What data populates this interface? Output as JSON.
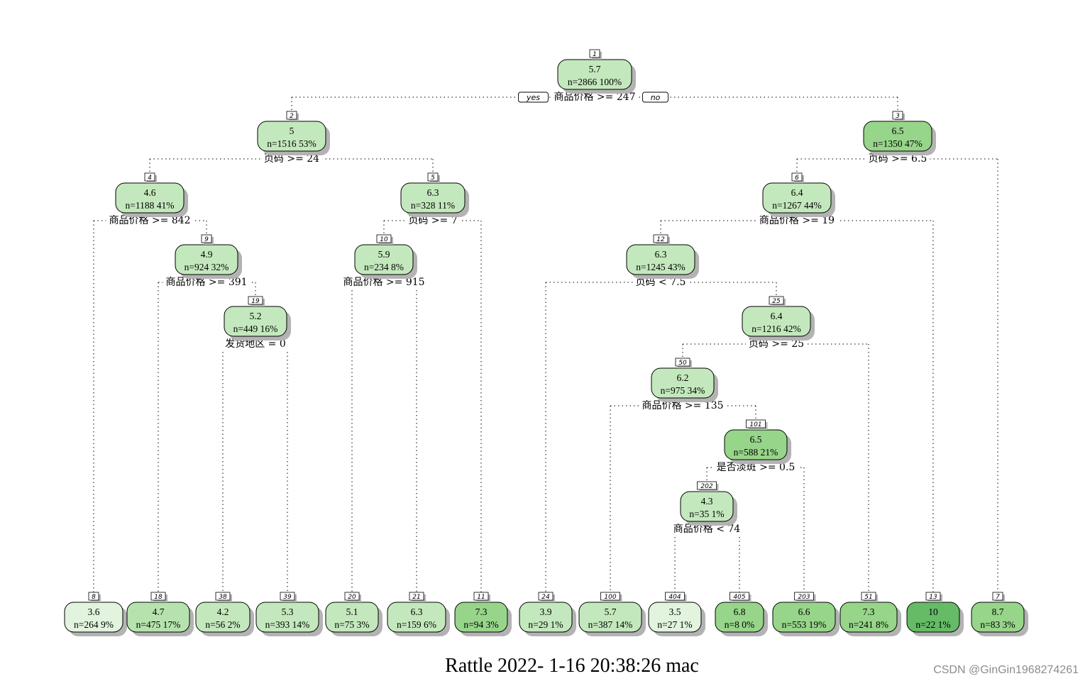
{
  "root_split": {
    "yes_label": "yes",
    "no_label": "no"
  },
  "colors": {
    "shade": [
      "#e2f3de",
      "#c4e8bd",
      "#b6e3ad",
      "#97d58a",
      "#66bb66"
    ]
  },
  "nodes": [
    {
      "id": "1",
      "value": "5.7",
      "stats": "n=2866  100%",
      "shade": 1,
      "split": "商品价格 >= 247"
    },
    {
      "id": "2",
      "value": "5",
      "stats": "n=1516  53%",
      "shade": 1,
      "split": "页码 >= 24"
    },
    {
      "id": "3",
      "value": "6.5",
      "stats": "n=1350  47%",
      "shade": 3,
      "split": "页码 >= 6.5"
    },
    {
      "id": "4",
      "value": "4.6",
      "stats": "n=1188  41%",
      "shade": 1,
      "split": "商品价格 >= 842"
    },
    {
      "id": "5",
      "value": "6.3",
      "stats": "n=328  11%",
      "shade": 1,
      "split": "页码 >= 7"
    },
    {
      "id": "6",
      "value": "6.4",
      "stats": "n=1267  44%",
      "shade": 1,
      "split": "商品价格 >= 19"
    },
    {
      "id": "9",
      "value": "4.9",
      "stats": "n=924  32%",
      "shade": 1,
      "split": "商品价格 >= 391"
    },
    {
      "id": "10",
      "value": "5.9",
      "stats": "n=234  8%",
      "shade": 1,
      "split": "商品价格 >= 915"
    },
    {
      "id": "12",
      "value": "6.3",
      "stats": "n=1245  43%",
      "shade": 1,
      "split": "页码 < 7.5"
    },
    {
      "id": "19",
      "value": "5.2",
      "stats": "n=449  16%",
      "shade": 1,
      "split": "发货地区 = 0"
    },
    {
      "id": "25",
      "value": "6.4",
      "stats": "n=1216  42%",
      "shade": 1,
      "split": "页码 >= 25"
    },
    {
      "id": "50",
      "value": "6.2",
      "stats": "n=975  34%",
      "shade": 1,
      "split": "商品价格 >= 135"
    },
    {
      "id": "101",
      "value": "6.5",
      "stats": "n=588  21%",
      "shade": 3,
      "split": "是否淡斑 >= 0.5"
    },
    {
      "id": "202",
      "value": "4.3",
      "stats": "n=35  1%",
      "shade": 1,
      "split": "商品价格 < 74"
    },
    {
      "id": "8",
      "value": "3.6",
      "stats": "n=264  9%",
      "shade": 0,
      "split": ""
    },
    {
      "id": "18",
      "value": "4.7",
      "stats": "n=475  17%",
      "shade": 2,
      "split": ""
    },
    {
      "id": "38",
      "value": "4.2",
      "stats": "n=56  2%",
      "shade": 1,
      "split": ""
    },
    {
      "id": "39",
      "value": "5.3",
      "stats": "n=393  14%",
      "shade": 1,
      "split": ""
    },
    {
      "id": "20",
      "value": "5.1",
      "stats": "n=75  3%",
      "shade": 1,
      "split": ""
    },
    {
      "id": "21",
      "value": "6.3",
      "stats": "n=159  6%",
      "shade": 1,
      "split": ""
    },
    {
      "id": "11",
      "value": "7.3",
      "stats": "n=94  3%",
      "shade": 3,
      "split": ""
    },
    {
      "id": "24",
      "value": "3.9",
      "stats": "n=29  1%",
      "shade": 1,
      "split": ""
    },
    {
      "id": "100",
      "value": "5.7",
      "stats": "n=387  14%",
      "shade": 1,
      "split": ""
    },
    {
      "id": "404",
      "value": "3.5",
      "stats": "n=27  1%",
      "shade": 0,
      "split": ""
    },
    {
      "id": "405",
      "value": "6.8",
      "stats": "n=8  0%",
      "shade": 3,
      "split": ""
    },
    {
      "id": "203",
      "value": "6.6",
      "stats": "n=553  19%",
      "shade": 3,
      "split": ""
    },
    {
      "id": "51",
      "value": "7.3",
      "stats": "n=241  8%",
      "shade": 3,
      "split": ""
    },
    {
      "id": "13",
      "value": "10",
      "stats": "n=22  1%",
      "shade": 4,
      "split": ""
    },
    {
      "id": "7",
      "value": "8.7",
      "stats": "n=83  3%",
      "shade": 3,
      "split": ""
    }
  ],
  "caption": "Rattle 2022- 1-16 20:38:26 mac",
  "watermark": "CSDN @GinGin1968274261"
}
